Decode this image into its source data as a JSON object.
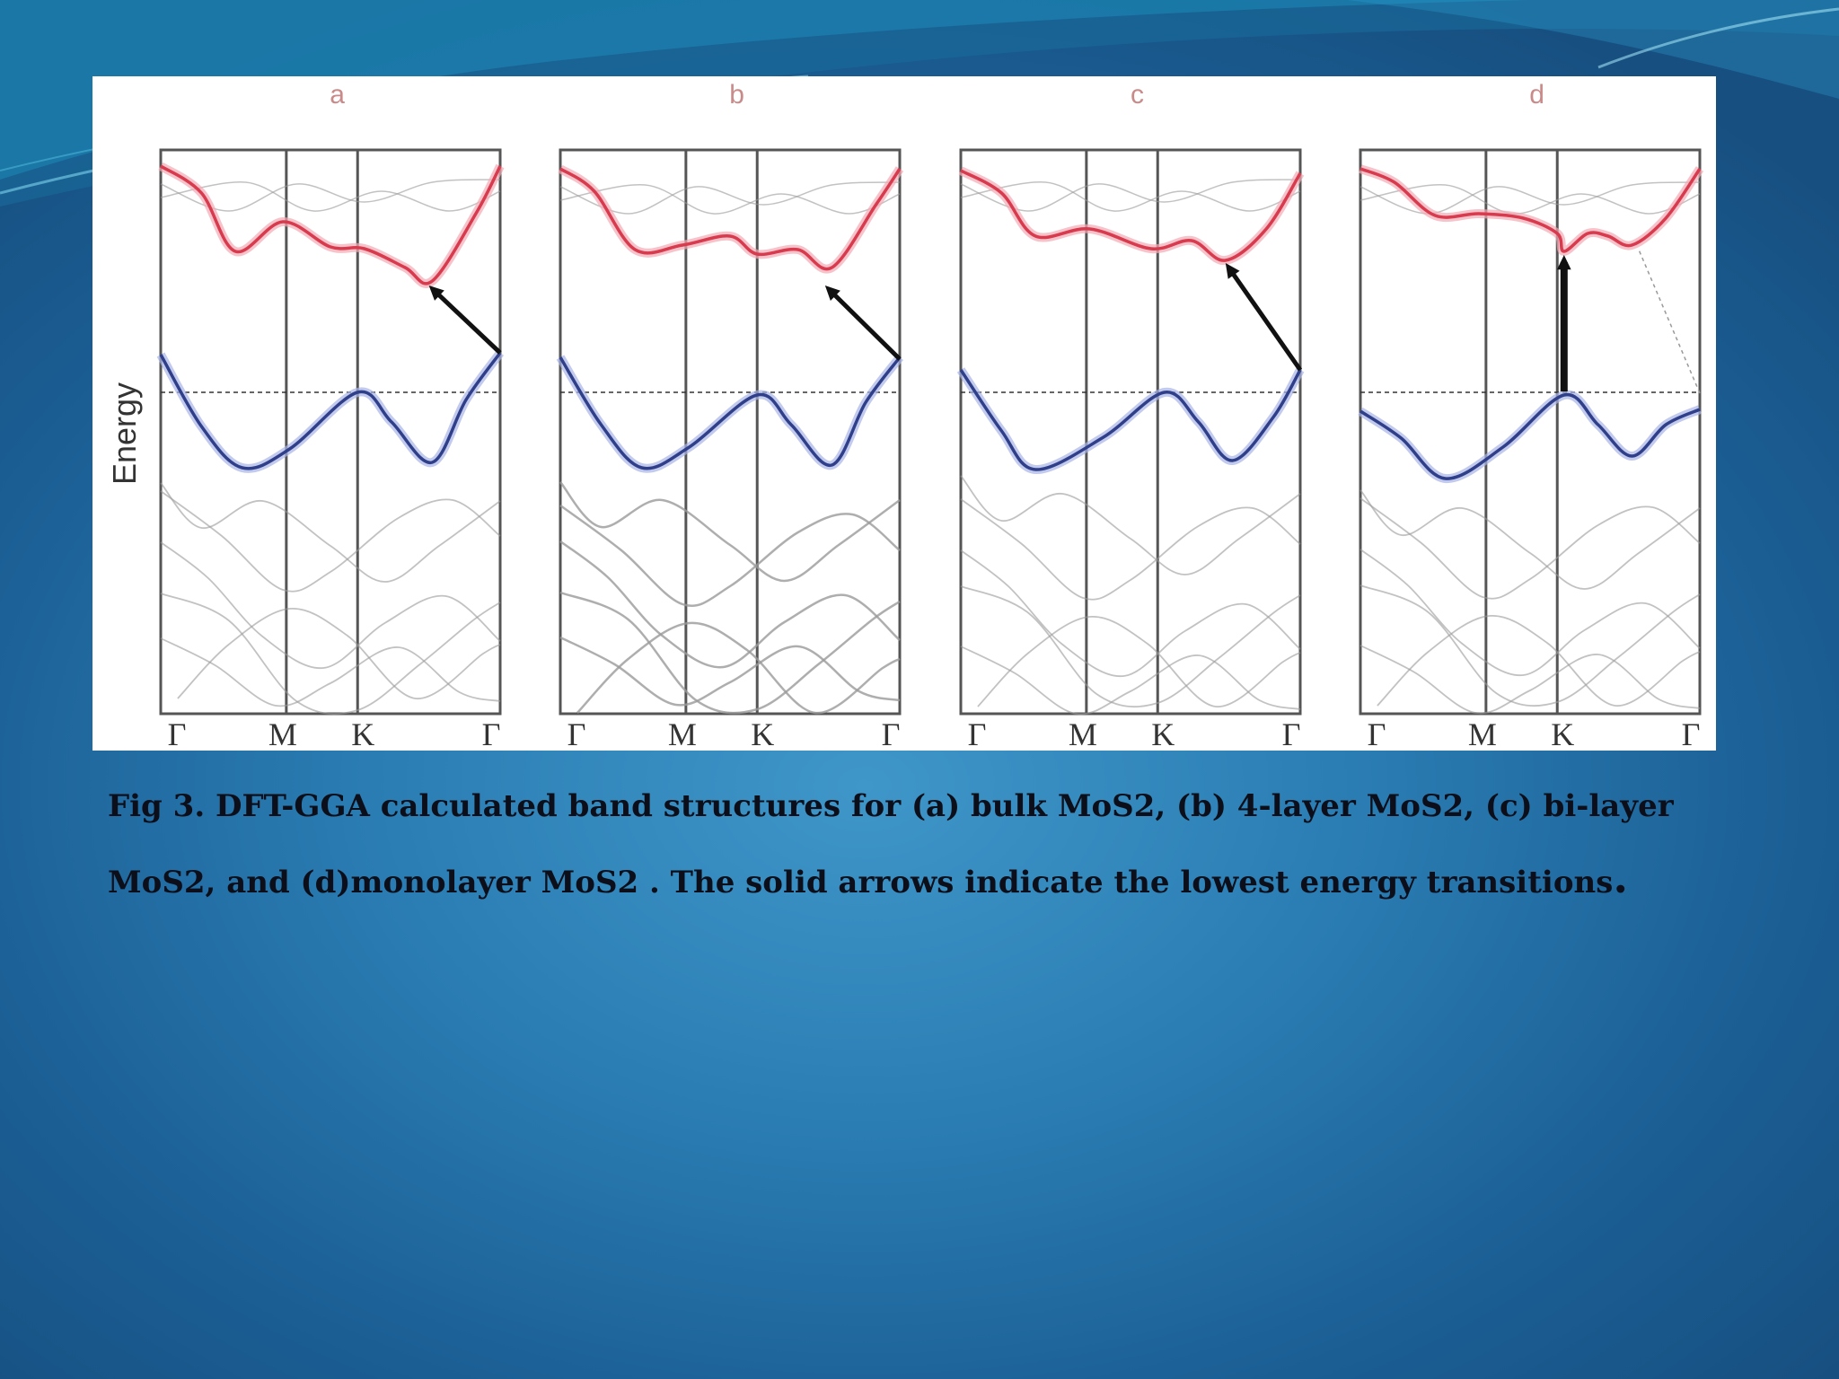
{
  "figure": {
    "y_axis_label": "Energy",
    "panels": [
      {
        "letter": "a",
        "kpoints": [
          "Γ",
          "M",
          "K",
          "Γ"
        ]
      },
      {
        "letter": "b",
        "kpoints": [
          "Γ",
          "M",
          "K",
          "Γ"
        ]
      },
      {
        "letter": "c",
        "kpoints": [
          "Γ",
          "M",
          "K",
          "Γ"
        ]
      },
      {
        "letter": "d",
        "kpoints": [
          "Γ",
          "M",
          "K",
          "Γ"
        ]
      }
    ]
  },
  "caption": {
    "line1": "Fig 3. DFT-GGA calculated band structures for (a) bulk MoS2, (b) 4-layer MoS2, (c) bi-layer",
    "line2": "MoS2, and (d)monolayer MoS2 . The solid arrows indicate the lowest energy transitions",
    "end_mark": "."
  },
  "colors": {
    "conduction_band": "#d83a4e",
    "valence_band": "#2f3f8a",
    "background_bands": "#9a9a9a",
    "transition_arrow": "#111111",
    "caption_text": "#0c0f1a"
  }
}
